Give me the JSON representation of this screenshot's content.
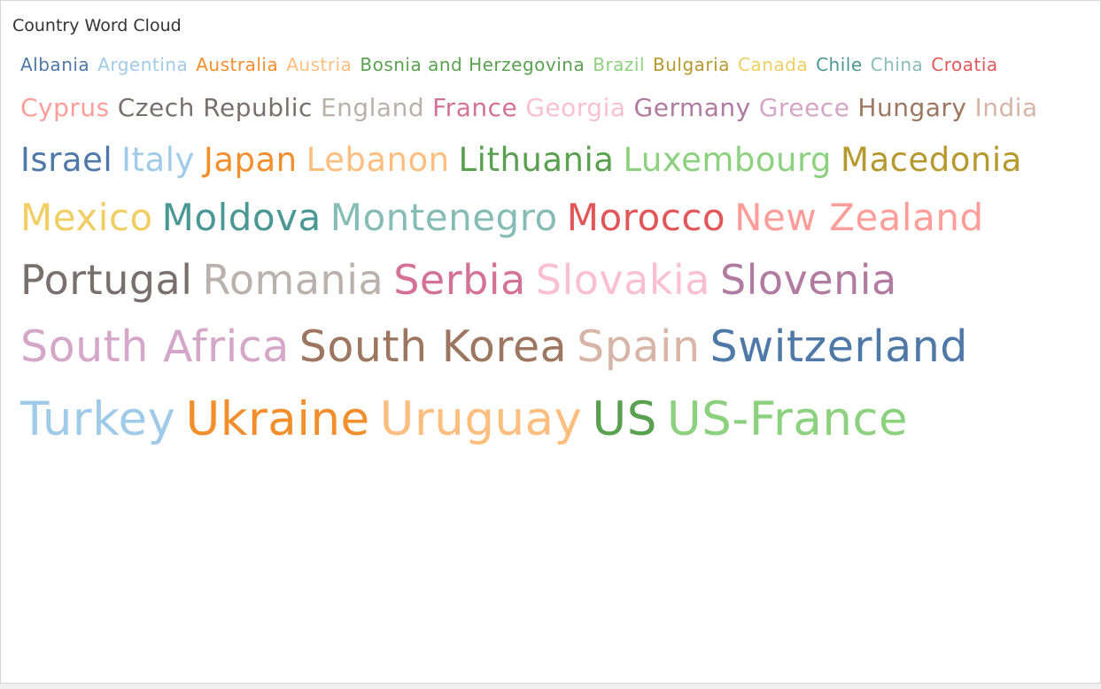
{
  "title": "Country Word Cloud",
  "chart_data": {
    "type": "word_cloud",
    "title": "Country Word Cloud",
    "words": [
      {
        "text": "Albania",
        "rank": 1,
        "color": "#4e79a7"
      },
      {
        "text": "Argentina",
        "rank": 2,
        "color": "#a0cbe8"
      },
      {
        "text": "Australia",
        "rank": 3,
        "color": "#f28e2b"
      },
      {
        "text": "Austria",
        "rank": 4,
        "color": "#ffbe7d"
      },
      {
        "text": "Bosnia and Herzegovina",
        "rank": 5,
        "color": "#59a14f"
      },
      {
        "text": "Brazil",
        "rank": 6,
        "color": "#8cd17d"
      },
      {
        "text": "Bulgaria",
        "rank": 7,
        "color": "#b6992d"
      },
      {
        "text": "Canada",
        "rank": 8,
        "color": "#f1ce63"
      },
      {
        "text": "Chile",
        "rank": 9,
        "color": "#499894"
      },
      {
        "text": "China",
        "rank": 10,
        "color": "#86bcb6"
      },
      {
        "text": "Croatia",
        "rank": 11,
        "color": "#e15759"
      },
      {
        "text": "Cyprus",
        "rank": 12,
        "color": "#ff9d9a"
      },
      {
        "text": "Czech Republic",
        "rank": 13,
        "color": "#79706e"
      },
      {
        "text": "England",
        "rank": 14,
        "color": "#bab0ac"
      },
      {
        "text": "France",
        "rank": 15,
        "color": "#d37295"
      },
      {
        "text": "Georgia",
        "rank": 16,
        "color": "#fabfd2"
      },
      {
        "text": "Germany",
        "rank": 17,
        "color": "#b07aa1"
      },
      {
        "text": "Greece",
        "rank": 18,
        "color": "#d4a6c8"
      },
      {
        "text": "Hungary",
        "rank": 19,
        "color": "#9d7660"
      },
      {
        "text": "India",
        "rank": 20,
        "color": "#d7b5a6"
      },
      {
        "text": "Israel",
        "rank": 21,
        "color": "#4e79a7"
      },
      {
        "text": "Italy",
        "rank": 22,
        "color": "#a0cbe8"
      },
      {
        "text": "Japan",
        "rank": 23,
        "color": "#f28e2b"
      },
      {
        "text": "Lebanon",
        "rank": 24,
        "color": "#ffbe7d"
      },
      {
        "text": "Lithuania",
        "rank": 25,
        "color": "#59a14f"
      },
      {
        "text": "Luxembourg",
        "rank": 26,
        "color": "#8cd17d"
      },
      {
        "text": "Macedonia",
        "rank": 27,
        "color": "#b6992d"
      },
      {
        "text": "Mexico",
        "rank": 28,
        "color": "#f1ce63"
      },
      {
        "text": "Moldova",
        "rank": 29,
        "color": "#499894"
      },
      {
        "text": "Montenegro",
        "rank": 30,
        "color": "#86bcb6"
      },
      {
        "text": "Morocco",
        "rank": 31,
        "color": "#e15759"
      },
      {
        "text": "New Zealand",
        "rank": 32,
        "color": "#ff9d9a"
      },
      {
        "text": "Portugal",
        "rank": 33,
        "color": "#79706e"
      },
      {
        "text": "Romania",
        "rank": 34,
        "color": "#bab0ac"
      },
      {
        "text": "Serbia",
        "rank": 35,
        "color": "#d37295"
      },
      {
        "text": "Slovakia",
        "rank": 36,
        "color": "#fabfd2"
      },
      {
        "text": "Slovenia",
        "rank": 37,
        "color": "#b07aa1"
      },
      {
        "text": "South Africa",
        "rank": 38,
        "color": "#d4a6c8"
      },
      {
        "text": "South Korea",
        "rank": 39,
        "color": "#9d7660"
      },
      {
        "text": "Spain",
        "rank": 40,
        "color": "#d7b5a6"
      },
      {
        "text": "Switzerland",
        "rank": 41,
        "color": "#4e79a7"
      },
      {
        "text": "Turkey",
        "rank": 42,
        "color": "#a0cbe8"
      },
      {
        "text": "Ukraine",
        "rank": 43,
        "color": "#f28e2b"
      },
      {
        "text": "Uruguay",
        "rank": 44,
        "color": "#ffbe7d"
      },
      {
        "text": "US",
        "rank": 45,
        "color": "#59a14f"
      },
      {
        "text": "US-France",
        "rank": 46,
        "color": "#8cd17d"
      }
    ]
  }
}
